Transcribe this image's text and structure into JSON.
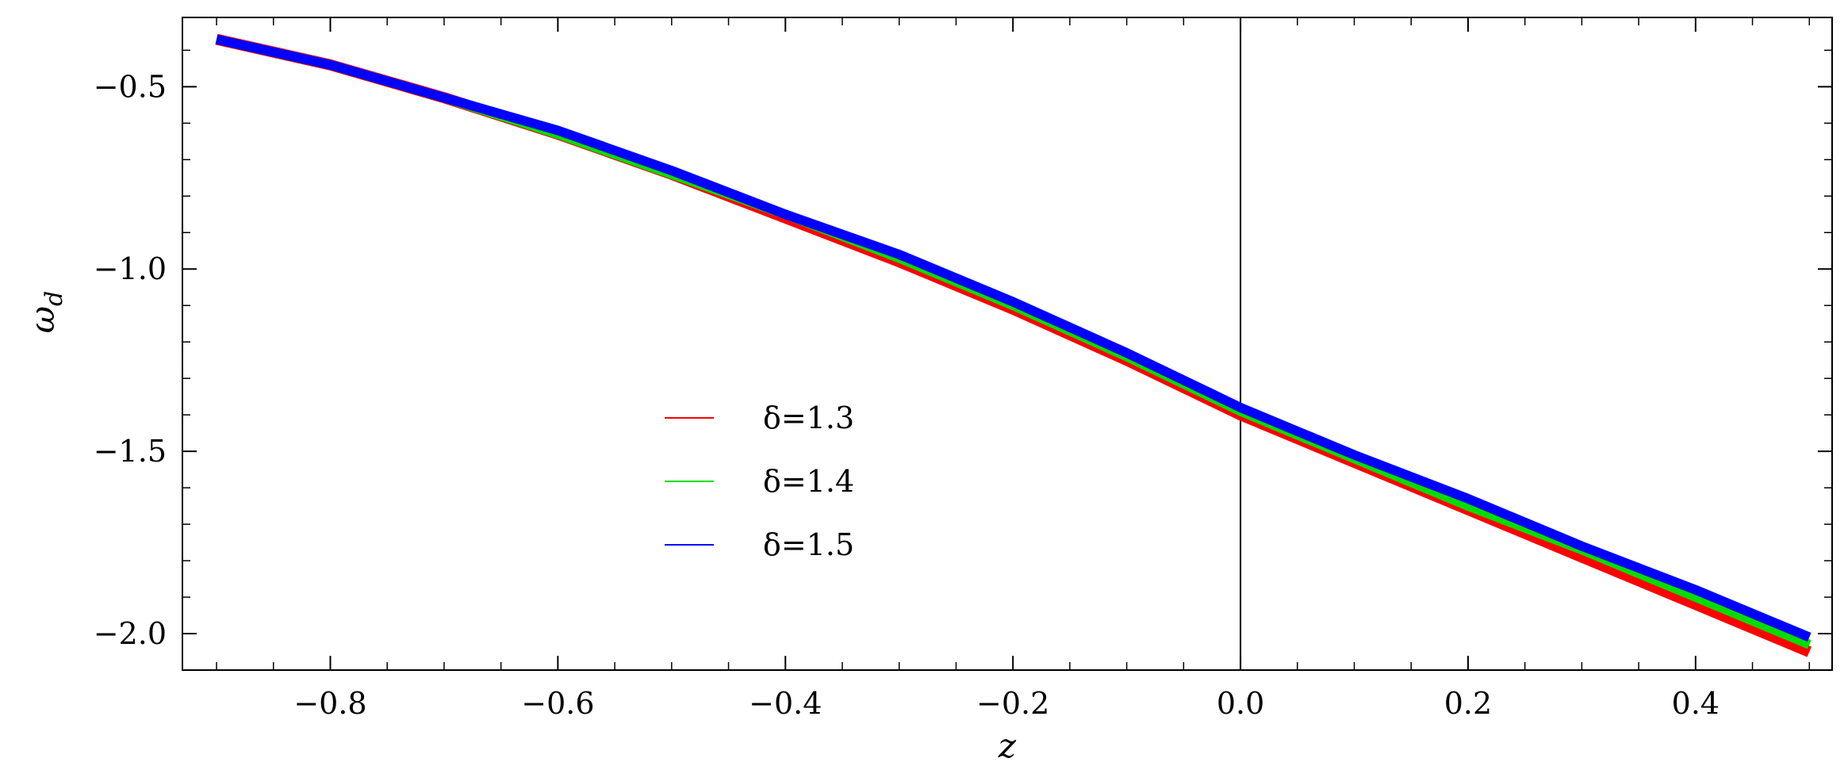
{
  "chart_data": {
    "type": "line",
    "xlabel": "z",
    "ylabel": "ω",
    "ylabel_subscript": "d",
    "xlim": [
      -0.93,
      0.52
    ],
    "ylim": [
      -2.1,
      -0.31
    ],
    "x_ticks": [
      {
        "value": -0.8,
        "label": "−0.8"
      },
      {
        "value": -0.6,
        "label": "−0.6"
      },
      {
        "value": -0.4,
        "label": "−0.4"
      },
      {
        "value": -0.2,
        "label": "−0.2"
      },
      {
        "value": 0.0,
        "label": "0.0"
      },
      {
        "value": 0.2,
        "label": "0.2"
      },
      {
        "value": 0.4,
        "label": "0.4"
      }
    ],
    "y_ticks": [
      {
        "value": -0.5,
        "label": "−0.5"
      },
      {
        "value": -1.0,
        "label": "−1.0"
      },
      {
        "value": -1.5,
        "label": "−1.5"
      },
      {
        "value": -2.0,
        "label": "−2.0"
      }
    ],
    "vertical_line_x": 0.0,
    "legend_position": "center-left",
    "series": [
      {
        "name": "δ=1.3",
        "color": "#ff0000",
        "x": [
          -0.9,
          -0.8,
          -0.7,
          -0.6,
          -0.5,
          -0.4,
          -0.3,
          -0.2,
          -0.1,
          0.0,
          0.1,
          0.2,
          0.3,
          0.4,
          0.5
        ],
        "y": [
          -0.37,
          -0.44,
          -0.53,
          -0.63,
          -0.74,
          -0.86,
          -0.98,
          -1.11,
          -1.25,
          -1.4,
          -1.53,
          -1.66,
          -1.79,
          -1.92,
          -2.05
        ]
      },
      {
        "name": "δ=1.4",
        "color": "#00dd00",
        "x": [
          -0.9,
          -0.8,
          -0.7,
          -0.6,
          -0.5,
          -0.4,
          -0.3,
          -0.2,
          -0.1,
          0.0,
          0.1,
          0.2,
          0.3,
          0.4,
          0.5
        ],
        "y": [
          -0.37,
          -0.44,
          -0.53,
          -0.63,
          -0.74,
          -0.85,
          -0.97,
          -1.1,
          -1.24,
          -1.39,
          -1.52,
          -1.65,
          -1.77,
          -1.9,
          -2.03
        ]
      },
      {
        "name": "δ=1.5",
        "color": "#0000ff",
        "x": [
          -0.9,
          -0.8,
          -0.7,
          -0.6,
          -0.5,
          -0.4,
          -0.3,
          -0.2,
          -0.1,
          0.0,
          0.1,
          0.2,
          0.3,
          0.4,
          0.5
        ],
        "y": [
          -0.37,
          -0.44,
          -0.53,
          -0.62,
          -0.73,
          -0.85,
          -0.96,
          -1.09,
          -1.23,
          -1.38,
          -1.51,
          -1.63,
          -1.76,
          -1.88,
          -2.01
        ]
      }
    ]
  }
}
